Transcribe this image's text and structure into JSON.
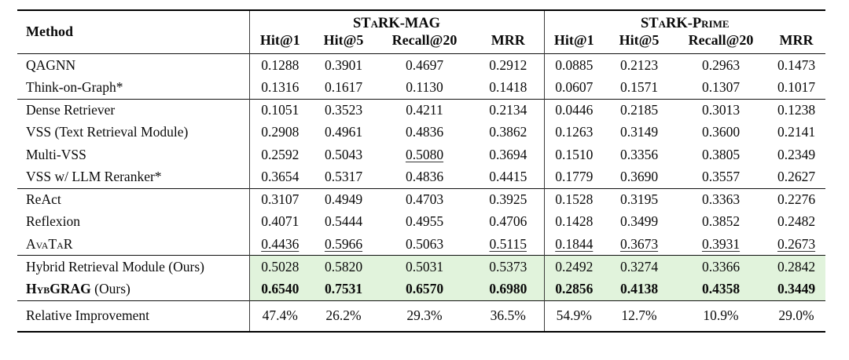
{
  "table": {
    "method_header": "Method",
    "groups": [
      {
        "title": "STaRK-MAG",
        "columns": [
          "Hit@1",
          "Hit@5",
          "Recall@20",
          "MRR"
        ]
      },
      {
        "title": "STaRK-Prime",
        "columns": [
          "Hit@1",
          "Hit@5",
          "Recall@20",
          "MRR"
        ]
      }
    ],
    "sections": [
      {
        "highlight": false,
        "rows": [
          {
            "method": "QAGNN",
            "cells": [
              {
                "v": "0.1288"
              },
              {
                "v": "0.3901"
              },
              {
                "v": "0.4697"
              },
              {
                "v": "0.2912"
              },
              {
                "v": "0.0885"
              },
              {
                "v": "0.2123"
              },
              {
                "v": "0.2963"
              },
              {
                "v": "0.1473"
              }
            ]
          },
          {
            "method": "Think-on-Graph*",
            "cells": [
              {
                "v": "0.1316"
              },
              {
                "v": "0.1617"
              },
              {
                "v": "0.1130"
              },
              {
                "v": "0.1418"
              },
              {
                "v": "0.0607"
              },
              {
                "v": "0.1571"
              },
              {
                "v": "0.1307"
              },
              {
                "v": "0.1017"
              }
            ]
          }
        ]
      },
      {
        "highlight": false,
        "rows": [
          {
            "method": "Dense Retriever",
            "cells": [
              {
                "v": "0.1051"
              },
              {
                "v": "0.3523"
              },
              {
                "v": "0.4211"
              },
              {
                "v": "0.2134"
              },
              {
                "v": "0.0446"
              },
              {
                "v": "0.2185"
              },
              {
                "v": "0.3013"
              },
              {
                "v": "0.1238"
              }
            ]
          },
          {
            "method": "VSS (Text Retrieval Module)",
            "cells": [
              {
                "v": "0.2908"
              },
              {
                "v": "0.4961"
              },
              {
                "v": "0.4836"
              },
              {
                "v": "0.3862"
              },
              {
                "v": "0.1263"
              },
              {
                "v": "0.3149"
              },
              {
                "v": "0.3600"
              },
              {
                "v": "0.2141"
              }
            ]
          },
          {
            "method": "Multi-VSS",
            "cells": [
              {
                "v": "0.2592"
              },
              {
                "v": "0.5043"
              },
              {
                "v": "0.5080",
                "u": true
              },
              {
                "v": "0.3694"
              },
              {
                "v": "0.1510"
              },
              {
                "v": "0.3356"
              },
              {
                "v": "0.3805"
              },
              {
                "v": "0.2349"
              }
            ]
          },
          {
            "method": "VSS w/ LLM Reranker*",
            "cells": [
              {
                "v": "0.3654"
              },
              {
                "v": "0.5317"
              },
              {
                "v": "0.4836"
              },
              {
                "v": "0.4415"
              },
              {
                "v": "0.1779"
              },
              {
                "v": "0.3690"
              },
              {
                "v": "0.3557"
              },
              {
                "v": "0.2627"
              }
            ]
          }
        ]
      },
      {
        "highlight": false,
        "rows": [
          {
            "method": "ReAct",
            "cells": [
              {
                "v": "0.3107"
              },
              {
                "v": "0.4949"
              },
              {
                "v": "0.4703"
              },
              {
                "v": "0.3925"
              },
              {
                "v": "0.1528"
              },
              {
                "v": "0.3195"
              },
              {
                "v": "0.3363"
              },
              {
                "v": "0.2276"
              }
            ]
          },
          {
            "method": "Reflexion",
            "cells": [
              {
                "v": "0.4071"
              },
              {
                "v": "0.5444"
              },
              {
                "v": "0.4955"
              },
              {
                "v": "0.4706"
              },
              {
                "v": "0.1428"
              },
              {
                "v": "0.3499"
              },
              {
                "v": "0.3852"
              },
              {
                "v": "0.2482"
              }
            ]
          },
          {
            "method": "AvaTaR",
            "sc": true,
            "cells": [
              {
                "v": "0.4436",
                "u": true
              },
              {
                "v": "0.5966",
                "u": true
              },
              {
                "v": "0.5063"
              },
              {
                "v": "0.5115",
                "u": true
              },
              {
                "v": "0.1844",
                "u": true
              },
              {
                "v": "0.3673",
                "u": true
              },
              {
                "v": "0.3931",
                "u": true
              },
              {
                "v": "0.2673",
                "u": true
              }
            ]
          }
        ]
      },
      {
        "highlight": true,
        "rows": [
          {
            "method": "Hybrid Retrieval Module (Ours)",
            "cells": [
              {
                "v": "0.5028"
              },
              {
                "v": "0.5820"
              },
              {
                "v": "0.5031"
              },
              {
                "v": "0.5373"
              },
              {
                "v": "0.2492"
              },
              {
                "v": "0.3274"
              },
              {
                "v": "0.3366"
              },
              {
                "v": "0.2842"
              }
            ]
          },
          {
            "method": "HybGRAG",
            "sc": true,
            "bold": true,
            "suffix": " (Ours)",
            "cells": [
              {
                "v": "0.6540",
                "b": true
              },
              {
                "v": "0.7531",
                "b": true
              },
              {
                "v": "0.6570",
                "b": true
              },
              {
                "v": "0.6980",
                "b": true
              },
              {
                "v": "0.2856",
                "b": true
              },
              {
                "v": "0.4138",
                "b": true
              },
              {
                "v": "0.4358",
                "b": true
              },
              {
                "v": "0.3449",
                "b": true
              }
            ]
          }
        ]
      }
    ],
    "footer": {
      "method": "Relative Improvement",
      "cells": [
        {
          "v": "47.4%"
        },
        {
          "v": "26.2%"
        },
        {
          "v": "29.3%"
        },
        {
          "v": "36.5%"
        },
        {
          "v": "54.9%"
        },
        {
          "v": "12.7%"
        },
        {
          "v": "10.9%"
        },
        {
          "v": "29.0%"
        }
      ]
    }
  }
}
